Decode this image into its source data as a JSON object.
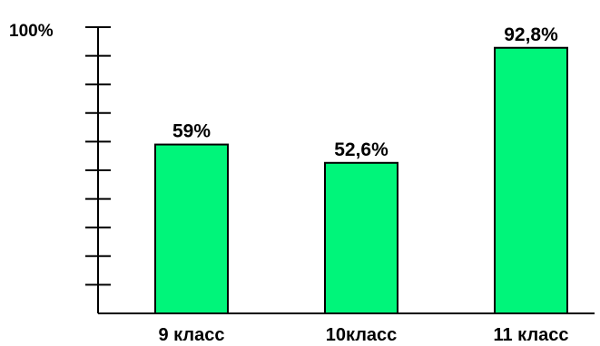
{
  "colors": {
    "bar_fill": "#00f57a",
    "bar_stroke": "#000000",
    "axis": "#000000",
    "background": "#ffffff"
  },
  "axis": {
    "top_label": "100%"
  },
  "chart_data": {
    "type": "bar",
    "categories": [
      "9 класс",
      "10класс",
      "11 класс"
    ],
    "values": [
      59,
      52.6,
      92.8
    ],
    "data_labels": [
      "59%",
      "52,6%",
      "92,8%"
    ],
    "title": "",
    "xlabel": "",
    "ylabel": "",
    "ylim": [
      0,
      100
    ],
    "y_tick_count": 10,
    "grid": false,
    "legend": "none"
  }
}
